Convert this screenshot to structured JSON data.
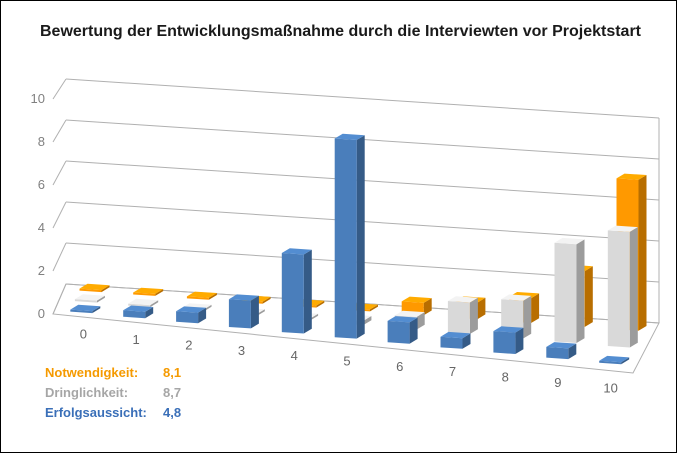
{
  "chart_data": {
    "type": "bar",
    "variant": "3d-clustered",
    "title": "Bewertung der Entwicklungsmaßnahme durch die Interviewten vor Projektstart",
    "categories": [
      "0",
      "1",
      "2",
      "3",
      "4",
      "5",
      "6",
      "7",
      "8",
      "9",
      "10"
    ],
    "series": [
      {
        "name": "Notwendigkeit",
        "color": "#ff9900",
        "values": [
          0,
          0,
          0,
          0,
          0,
          0,
          0.6,
          0.8,
          1.2,
          2.7,
          7.3
        ]
      },
      {
        "name": "Dringlichkeit",
        "color": "#d9d9d9",
        "values": [
          0,
          0,
          0,
          0,
          0,
          0.2,
          0.6,
          1.5,
          1.8,
          4.7,
          5.5
        ]
      },
      {
        "name": "Erfolgsaussicht",
        "color": "#4a7ebb",
        "values": [
          0,
          0.3,
          0.5,
          1.3,
          3.7,
          9.3,
          1.0,
          0.5,
          1.0,
          0.5,
          0
        ]
      }
    ],
    "yticks": [
      0,
      2,
      4,
      6,
      8,
      10
    ],
    "ylim": [
      0,
      10
    ],
    "grid": true,
    "legend_position": "bottom-left"
  },
  "legend": [
    {
      "label": "Notwendigkeit:",
      "value": "8,1",
      "color": "#f59a00"
    },
    {
      "label": "Dringlichkeit:",
      "value": "8,7",
      "color": "#a6a6a6"
    },
    {
      "label": "Erfolgsaussicht:",
      "value": "4,8",
      "color": "#3a6fb8"
    }
  ]
}
